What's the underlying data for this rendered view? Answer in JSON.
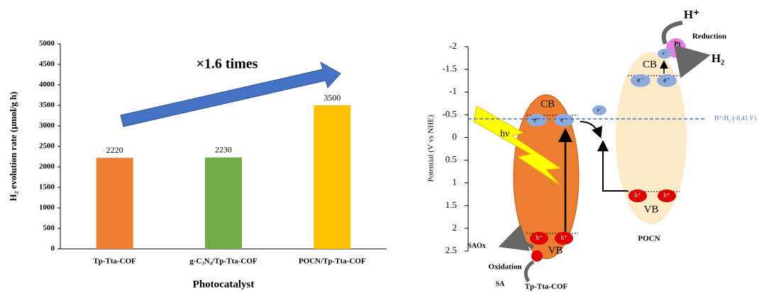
{
  "chart_data": {
    "type": "bar",
    "y_label": "H₂ evolution rate (μmol/g h)",
    "x_label": "Photocatalyst",
    "categories": [
      "Tp-Tta-COF",
      "g-C₃N₄/Tp-Tta-COF",
      "POCN/Tp-Tta-COF"
    ],
    "values": [
      2220,
      2230,
      3500
    ],
    "colors": [
      "#ed7d31",
      "#70ad47",
      "#ffc000"
    ],
    "ylim": [
      0,
      5000
    ],
    "yticks": [
      0,
      500,
      1000,
      1500,
      2000,
      2500,
      3000,
      3500,
      4000,
      4500,
      5000
    ],
    "annotation": "×1.6 times"
  },
  "diagram": {
    "axis_label": "Potential (V vs NHE)",
    "ylim": [
      -2,
      2.5
    ],
    "yticks": [
      -2,
      -1.5,
      -1,
      -0.5,
      0,
      0.5,
      1,
      1.5,
      2,
      2.5
    ],
    "reference": {
      "value": -0.41,
      "label": "H⁺/H₂ (-0.41 V)"
    },
    "cb": "CB",
    "vb": "VB",
    "electron": "e⁻",
    "hole": "h⁺",
    "light": "hν",
    "oxidized": "SAOx",
    "oxidation": "Oxidation",
    "sacrificial": "SA",
    "left_material": "Tp-Tta-COF",
    "right_material": "POCN",
    "proton": "H⁺",
    "reduction": "Reduction",
    "cocatalyst": "Pt",
    "product": "H₂"
  }
}
